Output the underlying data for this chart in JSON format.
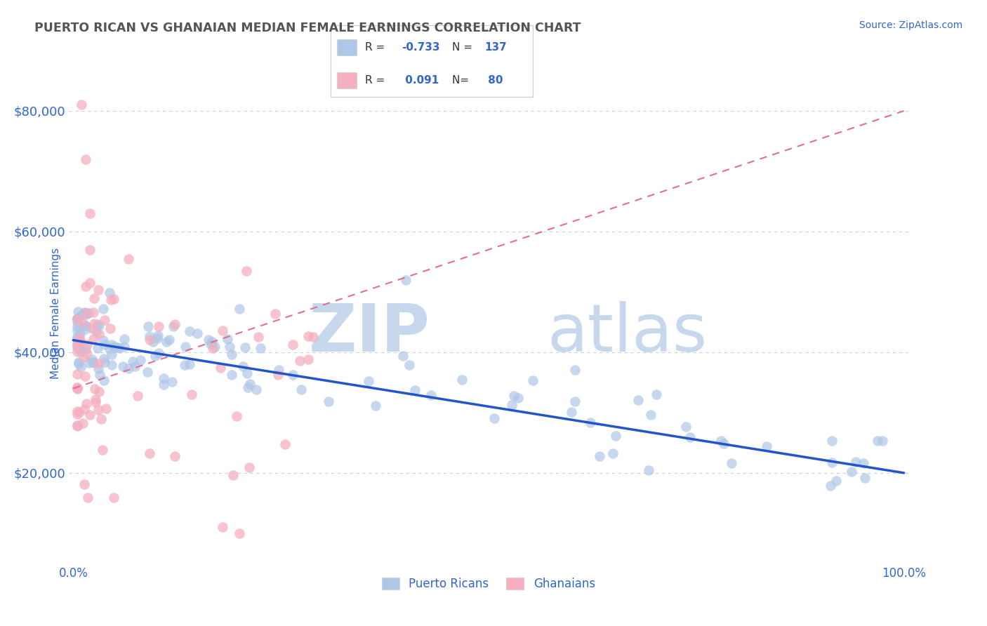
{
  "title": "PUERTO RICAN VS GHANAIAN MEDIAN FEMALE EARNINGS CORRELATION CHART",
  "source": "Source: ZipAtlas.com",
  "ylabel": "Median Female Earnings",
  "ytick_labels": [
    "$20,000",
    "$40,000",
    "$60,000",
    "$80,000"
  ],
  "ytick_values": [
    20000,
    40000,
    60000,
    80000
  ],
  "xlim": [
    -0.005,
    1.005
  ],
  "ylim": [
    5000,
    88000
  ],
  "xtick_labels": [
    "0.0%",
    "100.0%"
  ],
  "xtick_values": [
    0.0,
    1.0
  ],
  "blue_color": "#aec6e8",
  "pink_color": "#f4afc0",
  "blue_line_color": "#2255cc",
  "pink_line_color": "#e07090",
  "watermark_zip": "ZIP",
  "watermark_atlas": "atlas",
  "watermark_color": "#c8d8ec",
  "title_color": "#555555",
  "tick_label_color": "#3366cc",
  "legend_label_color": "#333333",
  "legend_value_color": "#3366cc",
  "background_color": "#ffffff",
  "grid_color": "#ccccdd",
  "blue_trend": [
    0.0,
    42000,
    1.0,
    20000
  ],
  "pink_trend": [
    0.0,
    34000,
    1.0,
    80000
  ],
  "legend_box_color": "#f0f4ff",
  "legend_border_color": "#cccccc",
  "bottom_legend_label_color": "#3366cc"
}
